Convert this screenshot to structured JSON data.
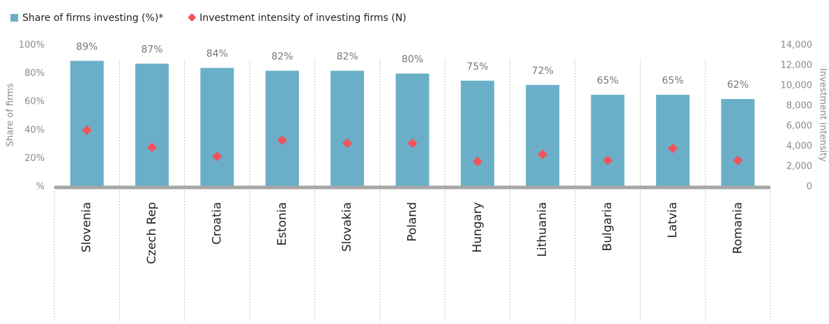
{
  "chart_data": {
    "type": "bar",
    "categories": [
      "Slovenia",
      "Czech Rep",
      "Croatia",
      "Estonia",
      "Slovakia",
      "Poland",
      "Hungary",
      "Lithuania",
      "Bulgaria",
      "Latvia",
      "Romania"
    ],
    "y_label": "Share of firms",
    "y2_label": "Investment intensity",
    "series": [
      {
        "name": "Share of firms investing (%)*",
        "type": "bar",
        "color": "#6aafc7",
        "values": [
          89,
          87,
          84,
          82,
          82,
          80,
          75,
          72,
          65,
          65,
          62
        ],
        "value_labels": [
          "89%",
          "87%",
          "84%",
          "82%",
          "82%",
          "80%",
          "75%",
          "72%",
          "65%",
          "65%",
          "62%"
        ]
      },
      {
        "name": "Investment intensity of investing firms (N)",
        "type": "scatter",
        "marker": "diamond",
        "axis": "y2",
        "color": "#f0545a",
        "values": [
          5600,
          3900,
          3000,
          4600,
          4300,
          4300,
          2500,
          3200,
          2600,
          3800,
          2600
        ]
      }
    ],
    "ylim": [
      0,
      100
    ],
    "yticks": [
      {
        "value": 0,
        "label": "%"
      },
      {
        "value": 20,
        "label": "20%"
      },
      {
        "value": 40,
        "label": "40%"
      },
      {
        "value": 60,
        "label": "60%"
      },
      {
        "value": 80,
        "label": "80%"
      },
      {
        "value": 100,
        "label": "100%"
      }
    ],
    "y2lim": [
      0,
      14000
    ],
    "y2ticks": [
      0,
      {
        "value": 2000,
        "label": "2,000"
      },
      {
        "value": 4000,
        "label": "4,000"
      },
      {
        "value": 6000,
        "label": "6,000"
      },
      {
        "value": 8000,
        "label": "8,000"
      },
      {
        "value": 10000,
        "label": "10,000"
      },
      {
        "value": 12000,
        "label": "12,000"
      },
      {
        "value": 14000,
        "label": "14,000"
      }
    ]
  }
}
